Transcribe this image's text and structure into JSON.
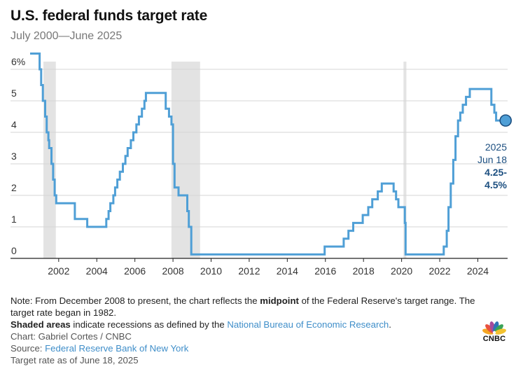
{
  "header": {
    "title": "U.S. federal funds target rate",
    "subtitle": "July 2000—June 2025"
  },
  "chart_data": {
    "type": "line",
    "title": "U.S. federal funds target rate",
    "subtitle": "July 2000—June 2025",
    "xlabel": "",
    "ylabel": "",
    "x_ticks": [
      "2002",
      "2004",
      "2006",
      "2008",
      "2010",
      "2012",
      "2014",
      "2016",
      "2018",
      "2020",
      "2022",
      "2024"
    ],
    "y_ticks": [
      "0",
      "1",
      "2",
      "3",
      "4",
      "5",
      "6%"
    ],
    "xlim": [
      2000.5,
      2025.6
    ],
    "ylim": [
      0,
      6.5
    ],
    "grid": true,
    "line_color": "#4f9fd6",
    "recession_color": "#e3e3e3",
    "recessions": [
      {
        "start": 2001.2,
        "end": 2001.85
      },
      {
        "start": 2007.92,
        "end": 2009.42
      },
      {
        "start": 2020.1,
        "end": 2020.25
      }
    ],
    "series": [
      {
        "points": [
          [
            2000.5,
            6.5
          ],
          [
            2001.0,
            6.5
          ],
          [
            2001.0,
            6.0
          ],
          [
            2001.08,
            6.0
          ],
          [
            2001.08,
            5.5
          ],
          [
            2001.17,
            5.5
          ],
          [
            2001.17,
            5.0
          ],
          [
            2001.29,
            5.0
          ],
          [
            2001.29,
            4.5
          ],
          [
            2001.37,
            4.5
          ],
          [
            2001.37,
            4.0
          ],
          [
            2001.46,
            4.0
          ],
          [
            2001.46,
            3.75
          ],
          [
            2001.5,
            3.75
          ],
          [
            2001.5,
            3.5
          ],
          [
            2001.62,
            3.5
          ],
          [
            2001.62,
            3.0
          ],
          [
            2001.71,
            3.0
          ],
          [
            2001.71,
            2.5
          ],
          [
            2001.79,
            2.5
          ],
          [
            2001.79,
            2.0
          ],
          [
            2001.87,
            2.0
          ],
          [
            2001.87,
            1.75
          ],
          [
            2002.85,
            1.75
          ],
          [
            2002.85,
            1.25
          ],
          [
            2003.5,
            1.25
          ],
          [
            2003.5,
            1.0
          ],
          [
            2004.5,
            1.0
          ],
          [
            2004.5,
            1.25
          ],
          [
            2004.62,
            1.25
          ],
          [
            2004.62,
            1.5
          ],
          [
            2004.71,
            1.5
          ],
          [
            2004.71,
            1.75
          ],
          [
            2004.87,
            1.75
          ],
          [
            2004.87,
            2.0
          ],
          [
            2004.96,
            2.0
          ],
          [
            2004.96,
            2.25
          ],
          [
            2005.08,
            2.25
          ],
          [
            2005.08,
            2.5
          ],
          [
            2005.21,
            2.5
          ],
          [
            2005.21,
            2.75
          ],
          [
            2005.37,
            2.75
          ],
          [
            2005.37,
            3.0
          ],
          [
            2005.5,
            3.0
          ],
          [
            2005.5,
            3.25
          ],
          [
            2005.62,
            3.25
          ],
          [
            2005.62,
            3.5
          ],
          [
            2005.79,
            3.5
          ],
          [
            2005.79,
            3.75
          ],
          [
            2005.92,
            3.75
          ],
          [
            2005.92,
            4.0
          ],
          [
            2006.08,
            4.0
          ],
          [
            2006.08,
            4.25
          ],
          [
            2006.21,
            4.25
          ],
          [
            2006.21,
            4.5
          ],
          [
            2006.37,
            4.5
          ],
          [
            2006.37,
            4.75
          ],
          [
            2006.5,
            4.75
          ],
          [
            2006.5,
            5.0
          ],
          [
            2006.58,
            5.0
          ],
          [
            2006.58,
            5.25
          ],
          [
            2007.62,
            5.25
          ],
          [
            2007.62,
            4.75
          ],
          [
            2007.79,
            4.75
          ],
          [
            2007.79,
            4.5
          ],
          [
            2007.92,
            4.5
          ],
          [
            2007.92,
            4.25
          ],
          [
            2008.0,
            4.25
          ],
          [
            2008.0,
            3.0
          ],
          [
            2008.08,
            3.0
          ],
          [
            2008.08,
            2.25
          ],
          [
            2008.29,
            2.25
          ],
          [
            2008.29,
            2.0
          ],
          [
            2008.75,
            2.0
          ],
          [
            2008.75,
            1.5
          ],
          [
            2008.83,
            1.5
          ],
          [
            2008.83,
            1.0
          ],
          [
            2008.96,
            1.0
          ],
          [
            2008.96,
            0.125
          ],
          [
            2015.96,
            0.125
          ],
          [
            2015.96,
            0.375
          ],
          [
            2016.96,
            0.375
          ],
          [
            2016.96,
            0.625
          ],
          [
            2017.21,
            0.625
          ],
          [
            2017.21,
            0.875
          ],
          [
            2017.46,
            0.875
          ],
          [
            2017.46,
            1.125
          ],
          [
            2017.96,
            1.125
          ],
          [
            2017.96,
            1.375
          ],
          [
            2018.25,
            1.375
          ],
          [
            2018.25,
            1.625
          ],
          [
            2018.46,
            1.625
          ],
          [
            2018.46,
            1.875
          ],
          [
            2018.75,
            1.875
          ],
          [
            2018.75,
            2.125
          ],
          [
            2018.96,
            2.125
          ],
          [
            2018.96,
            2.375
          ],
          [
            2019.58,
            2.375
          ],
          [
            2019.58,
            2.125
          ],
          [
            2019.71,
            2.125
          ],
          [
            2019.71,
            1.875
          ],
          [
            2019.83,
            1.875
          ],
          [
            2019.83,
            1.625
          ],
          [
            2020.17,
            1.625
          ],
          [
            2020.17,
            1.125
          ],
          [
            2020.21,
            1.125
          ],
          [
            2020.21,
            0.125
          ],
          [
            2022.21,
            0.125
          ],
          [
            2022.21,
            0.375
          ],
          [
            2022.37,
            0.375
          ],
          [
            2022.37,
            0.875
          ],
          [
            2022.46,
            0.875
          ],
          [
            2022.46,
            1.625
          ],
          [
            2022.58,
            1.625
          ],
          [
            2022.58,
            2.375
          ],
          [
            2022.71,
            2.375
          ],
          [
            2022.71,
            3.125
          ],
          [
            2022.83,
            3.125
          ],
          [
            2022.83,
            3.875
          ],
          [
            2022.96,
            3.875
          ],
          [
            2022.96,
            4.375
          ],
          [
            2023.08,
            4.375
          ],
          [
            2023.08,
            4.625
          ],
          [
            2023.21,
            4.625
          ],
          [
            2023.21,
            4.875
          ],
          [
            2023.38,
            4.875
          ],
          [
            2023.38,
            5.125
          ],
          [
            2023.58,
            5.125
          ],
          [
            2023.58,
            5.375
          ],
          [
            2024.71,
            5.375
          ],
          [
            2024.71,
            4.875
          ],
          [
            2024.87,
            4.875
          ],
          [
            2024.87,
            4.625
          ],
          [
            2024.96,
            4.625
          ],
          [
            2024.96,
            4.375
          ],
          [
            2025.46,
            4.375
          ]
        ]
      }
    ],
    "annotation": {
      "x": 2025.46,
      "y": 4.375,
      "line1": "2025",
      "line2": "Jun 18",
      "line3": "4.25-",
      "line4": "4.5%"
    }
  },
  "notes": {
    "note_a": "Note: From December 2008 to present, the chart reflects the ",
    "note_bold": "midpoint",
    "note_b": " of the Federal Reserve's target range. The target rate began in 1982.",
    "shaded_bold": "Shaded areas",
    "shaded_text": " indicate recessions as defined by the ",
    "shaded_link": "National Bureau of Economic Research",
    "shaded_end": ".",
    "credit": "Chart: Gabriel Cortes / CNBC",
    "source_label": "Source: ",
    "source_link": "Federal Reserve Bank of New York",
    "asof": "Target rate as of June 18, 2025"
  },
  "logo": {
    "text": "CNBC",
    "colors": [
      "#f5a623",
      "#e8523f",
      "#a54b9c",
      "#2d74b8",
      "#3aa357",
      "#f2c230"
    ]
  }
}
